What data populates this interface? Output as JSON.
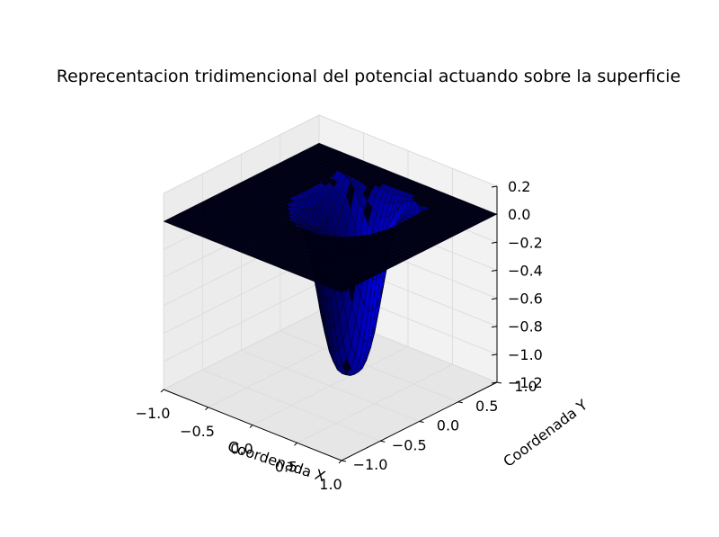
{
  "chart_data": {
    "type": "surface3d",
    "title": "Reprecentacion tridimencional del potencial actuando sobre la superficie",
    "xlabel": "Coordenada X",
    "ylabel": "Coordenada Y",
    "zlabel": "",
    "xlim": [
      -1.0,
      1.0
    ],
    "ylim": [
      -1.0,
      1.0
    ],
    "zlim": [
      -1.2,
      0.2
    ],
    "x_ticks": [
      "−1.0",
      "−0.5",
      "0.0",
      "0.5",
      "1.0"
    ],
    "y_ticks": [
      "−1.0",
      "−0.5",
      "0.0",
      "0.5",
      "1.0"
    ],
    "z_ticks": [
      "−1.2",
      "−1.0",
      "−0.8",
      "−0.6",
      "−0.4",
      "−0.2",
      "0.0",
      "0.2"
    ],
    "surface": {
      "description_of_shape": "flat plane at z=0 with a deep well centred near x=0, y=0.25, minimum about -1.18, and a narrow raised ridge along y≈0.6",
      "well_center": [
        0.0,
        0.25
      ],
      "well_min": -1.18,
      "ridge_y": 0.6,
      "ridge_height": 0.06
    },
    "face_color": "#0000ff",
    "edge_color": "#000000",
    "grid": true
  }
}
